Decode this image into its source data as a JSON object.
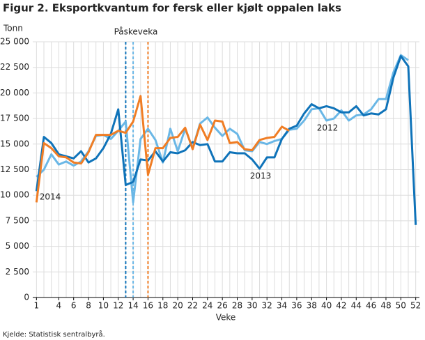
{
  "chart_data": {
    "type": "line",
    "title": "Figur 2. Eksportkvantum for fersk eller kjølt oppalen laks",
    "y_label": "Tonn",
    "x_label": "Veke",
    "source": "Kjelde: Statistisk sentralbyrå.",
    "annotation": "Påskeveka",
    "x": [
      1,
      2,
      3,
      4,
      5,
      6,
      7,
      8,
      9,
      10,
      11,
      12,
      13,
      14,
      15,
      16,
      17,
      18,
      19,
      20,
      21,
      22,
      23,
      24,
      25,
      26,
      27,
      28,
      29,
      30,
      31,
      32,
      33,
      34,
      35,
      36,
      37,
      38,
      39,
      40,
      41,
      42,
      43,
      44,
      45,
      46,
      47,
      48,
      49,
      50,
      51,
      52
    ],
    "xlim": [
      0.5,
      52.5
    ],
    "xticks": [
      1,
      4,
      6,
      8,
      10,
      12,
      14,
      16,
      18,
      20,
      22,
      24,
      26,
      28,
      30,
      32,
      34,
      36,
      38,
      40,
      42,
      44,
      46,
      48,
      50,
      52
    ],
    "ylim": [
      0,
      25000
    ],
    "yticks": [
      0,
      {
        "value": 2500,
        "label": "2 500"
      },
      {
        "value": 5000,
        "label": "5 000"
      },
      {
        "value": 7500,
        "label": "7 500"
      },
      {
        "value": 10000,
        "label": "10 000"
      },
      {
        "value": 12500,
        "label": "12 500"
      },
      {
        "value": 15000,
        "label": "15 000"
      },
      {
        "value": 17500,
        "label": "17 500"
      },
      {
        "value": 20000,
        "label": "20 000"
      },
      {
        "value": 22500,
        "label": "22 500"
      },
      {
        "value": 25000,
        "label": "25 000"
      }
    ],
    "grid": true,
    "reference_lines": [
      {
        "x": 13,
        "color": "#0f73b9"
      },
      {
        "x": 14,
        "color": "#6ab7e6"
      },
      {
        "x": 16,
        "color": "#f07d24"
      }
    ],
    "series": [
      {
        "name": "2012",
        "color": "#6ab7e6",
        "values": [
          11800,
          12500,
          14000,
          13000,
          13300,
          12900,
          13300,
          14300,
          15800,
          15900,
          15500,
          16300,
          17200,
          9300,
          15500,
          16500,
          15400,
          13200,
          16500,
          14300,
          16500,
          14600,
          17000,
          17600,
          16600,
          15800,
          16500,
          16000,
          14400,
          14300,
          15200,
          15000,
          15300,
          15500,
          16400,
          16500,
          17300,
          18400,
          18500,
          17300,
          17500,
          18300,
          17300,
          17800,
          17900,
          18400,
          19400,
          19400,
          22000,
          23700,
          23200,
          null
        ]
      },
      {
        "name": "2013",
        "color": "#0f73b9",
        "values": [
          10400,
          15700,
          15100,
          14000,
          13800,
          13600,
          14300,
          13200,
          13600,
          14600,
          16000,
          18400,
          11000,
          11300,
          13500,
          13400,
          14300,
          13300,
          14200,
          14100,
          14400,
          15200,
          14900,
          15000,
          13300,
          13300,
          14200,
          14100,
          14100,
          13500,
          12600,
          13700,
          13700,
          15500,
          16500,
          16800,
          18000,
          18900,
          18500,
          18700,
          18500,
          18100,
          18100,
          18700,
          17800,
          18000,
          17900,
          18400,
          21500,
          23600,
          22600,
          7100
        ]
      },
      {
        "name": "2014",
        "color": "#f07d24",
        "values": [
          9300,
          15100,
          14600,
          13800,
          13700,
          13200,
          13100,
          14200,
          15900,
          15900,
          15900,
          16300,
          16100,
          17200,
          19700,
          12000,
          14600,
          14600,
          15600,
          15700,
          16600,
          14500,
          16900,
          15400,
          17300,
          17200,
          15100,
          15200,
          14500,
          14400,
          15400,
          15600,
          15700,
          16700,
          16300,
          null,
          null,
          null,
          null,
          null,
          null,
          null,
          null,
          null,
          null,
          null,
          null,
          null,
          null,
          null,
          null,
          null
        ]
      }
    ]
  }
}
